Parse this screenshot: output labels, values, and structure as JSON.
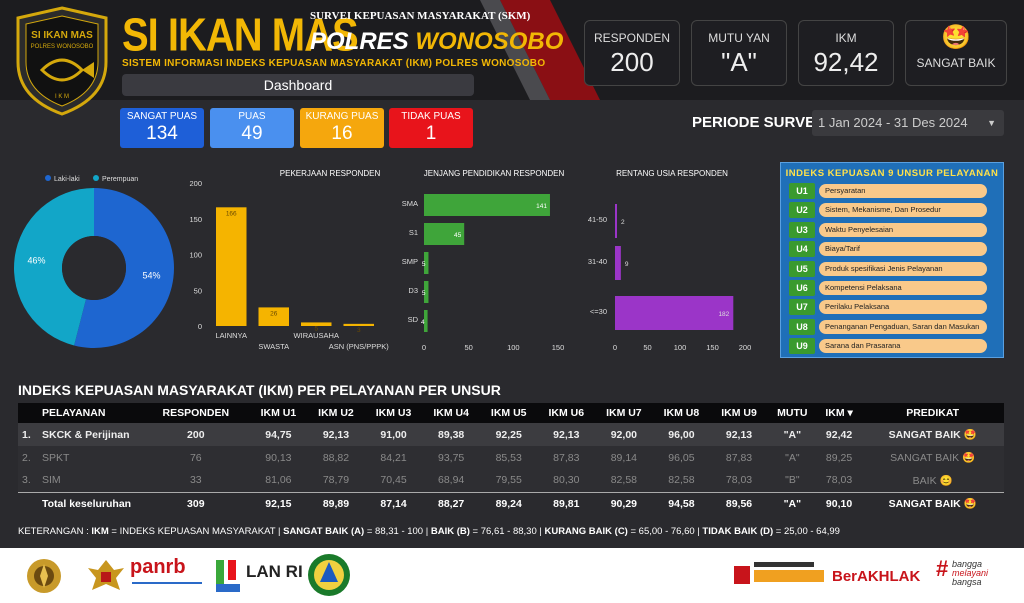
{
  "header": {
    "title": "SI IKAN MAS",
    "survey": "SURVEI KEPUASAN MASYARAKAT (SKM)",
    "polres": "POLRES",
    "city": "WONOSOBO",
    "subtitle": "SISTEM INFORMASI INDEKS KEPUASAN MASYARAKAT (IKM) POLRES WONOSOBO",
    "dashboard": "Dashboard",
    "logo_line1": "SI IKAN MAS",
    "logo_line2": "POLRES WONOSOBO",
    "logo_line3": "I K M"
  },
  "kpis": {
    "responden_label": "RESPONDEN",
    "responden": "200",
    "mutu_label": "MUTU YAN",
    "mutu": "\"A\"",
    "ikm_label": "IKM",
    "ikm": "92,42",
    "predikat_emoji": "🤩",
    "predikat": "SANGAT BAIK"
  },
  "categories": [
    {
      "label": "SANGAT PUAS",
      "value": "134",
      "color": "#1e5fd8"
    },
    {
      "label": "PUAS",
      "value": "49",
      "color": "#4a90ef"
    },
    {
      "label": "KURANG PUAS",
      "value": "16",
      "color": "#f5a70d"
    },
    {
      "label": "TIDAK PUAS",
      "value": "1",
      "color": "#e8141b"
    }
  ],
  "periode": {
    "label": "PERIODE SURVEI",
    "value": "1 Jan 2024 - 31 Des 2024"
  },
  "chart_data": [
    {
      "type": "pie",
      "labels": [
        "Laki-laki",
        "Perempuan"
      ],
      "values": [
        54,
        46
      ],
      "display": [
        "54%",
        "46%"
      ],
      "colors": [
        "#1e66d0",
        "#12a6c8"
      ],
      "legend": "top-left"
    },
    {
      "type": "bar",
      "title": "PEKERJAAN RESPONDEN",
      "categories": [
        "LAINNYA",
        "SWASTA",
        "WIRAUSAHA",
        "ASN (PNS/PPPK)"
      ],
      "values": [
        166,
        26,
        5,
        3
      ],
      "ylim": [
        0,
        200
      ],
      "yticks": [
        "0",
        "50",
        "100",
        "150",
        "200"
      ],
      "color": "#f5b400"
    },
    {
      "type": "bar",
      "orientation": "horizontal",
      "title": "JENJANG PENDIDIKAN RESPONDEN",
      "categories": [
        "SMA",
        "S1",
        "SMP",
        "D3",
        "SD"
      ],
      "values": [
        141,
        45,
        5,
        5,
        4
      ],
      "xlim": [
        0,
        150
      ],
      "xticks": [
        "0",
        "50",
        "100",
        "150"
      ],
      "color": "#3fa53a"
    },
    {
      "type": "bar",
      "orientation": "horizontal",
      "title": "RENTANG USIA RESPONDEN",
      "categories": [
        "41-50",
        "31-40",
        "<=30"
      ],
      "values": [
        2,
        9,
        182
      ],
      "xlim": [
        0,
        200
      ],
      "xticks": [
        "0",
        "50",
        "100",
        "150",
        "200"
      ],
      "color": "#9b35c8"
    }
  ],
  "unsur": {
    "title": "INDEKS KEPUASAN 9 UNSUR PELAYANAN",
    "items": [
      {
        "code": "U1",
        "label": "Persyaratan"
      },
      {
        "code": "U2",
        "label": "Sistem, Mekanisme, Dan Prosedur"
      },
      {
        "code": "U3",
        "label": "Waktu Penyelesaian"
      },
      {
        "code": "U4",
        "label": "Biaya/Tarif"
      },
      {
        "code": "U5",
        "label": "Produk spesifikasi Jenis Pelayanan"
      },
      {
        "code": "U6",
        "label": "Kompetensi Pelaksana"
      },
      {
        "code": "U7",
        "label": "Perilaku Pelaksana"
      },
      {
        "code": "U8",
        "label": "Penanganan Pengaduan, Saran dan Masukan"
      },
      {
        "code": "U9",
        "label": "Sarana dan Prasarana"
      }
    ]
  },
  "table": {
    "title": "INDEKS KEPUASAN MASYARAKAT (IKM) PER PELAYANAN PER UNSUR",
    "headers": [
      "PELAYANAN",
      "RESPONDEN",
      "IKM U1",
      "IKM U2",
      "IKM U3",
      "IKM U4",
      "IKM U5",
      "IKM U6",
      "IKM U7",
      "IKM U8",
      "IKM U9",
      "MUTU",
      "IKM ▾",
      "PREDIKAT"
    ],
    "rows": [
      {
        "no": "1.",
        "cells": [
          "SKCK & Perijinan",
          "200",
          "94,75",
          "92,13",
          "91,00",
          "89,38",
          "92,25",
          "92,13",
          "92,00",
          "96,00",
          "92,13",
          "\"A\"",
          "92,42",
          "SANGAT BAIK 🤩"
        ]
      },
      {
        "no": "2.",
        "cells": [
          "SPKT",
          "76",
          "90,13",
          "88,82",
          "84,21",
          "93,75",
          "85,53",
          "87,83",
          "89,14",
          "96,05",
          "87,83",
          "\"A\"",
          "89,25",
          "SANGAT BAIK 🤩"
        ]
      },
      {
        "no": "3.",
        "cells": [
          "SIM",
          "33",
          "81,06",
          "78,79",
          "70,45",
          "68,94",
          "79,55",
          "80,30",
          "82,58",
          "82,58",
          "78,03",
          "\"B\"",
          "78,03",
          "BAIK 😊"
        ]
      }
    ],
    "total": [
      "Total keseluruhan",
      "309",
      "92,15",
      "89,89",
      "87,14",
      "88,27",
      "89,24",
      "89,81",
      "90,29",
      "94,58",
      "89,56",
      "\"A\"",
      "90,10",
      "SANGAT BAIK 🤩"
    ]
  },
  "keterangan": {
    "p1": "KETERANGAN : ",
    "p2": "IKM",
    "p3": " = INDEKS KEPUASAN MASYARAKAT | ",
    "p4": "SANGAT BAIK (A)",
    "p5": " = 88,31 - 100 | ",
    "p6": "BAIK (B)",
    "p7": " =  76,61 - 88,30 | ",
    "p8": "KURANG BAIK (C)",
    "p9": " = 65,00 - 76,60 | ",
    "p10": "TIDAK BAIK (D)",
    "p11": " = 25,00 - 64,99"
  },
  "footer": {
    "panrb": "panrb",
    "lanri": "LAN RI",
    "berakhlak": "BerAKHLAK",
    "bangga1": "bangga",
    "bangga2": "melayani",
    "bangga3": "bangsa"
  }
}
